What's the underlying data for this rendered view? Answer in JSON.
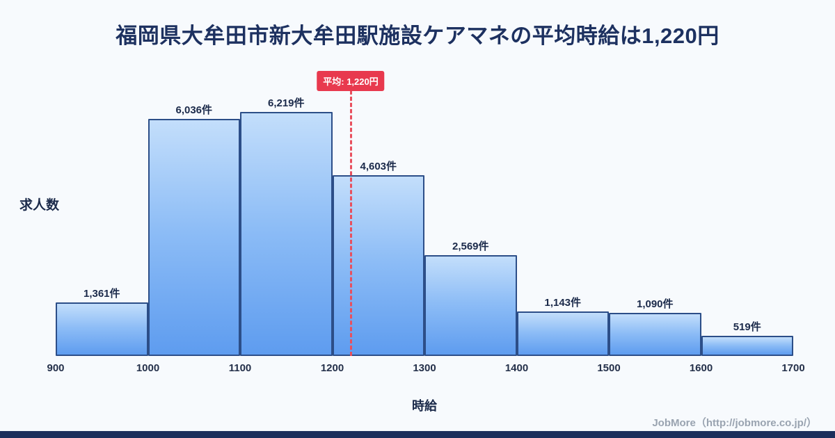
{
  "title": "福岡県大牟田市新大牟田駅施設ケアマネの平均時給は1,220円",
  "chart_data": {
    "type": "bar",
    "subtype": "histogram",
    "bin_edges": [
      900,
      1000,
      1100,
      1200,
      1300,
      1400,
      1500,
      1600,
      1700
    ],
    "categories": [
      "900-1000",
      "1000-1100",
      "1100-1200",
      "1200-1300",
      "1300-1400",
      "1400-1500",
      "1500-1600",
      "1600-1700"
    ],
    "values": [
      1361,
      6036,
      6219,
      4603,
      2569,
      1143,
      1090,
      519
    ],
    "value_labels": [
      "1,361件",
      "6,036件",
      "6,219件",
      "4,603件",
      "2,569件",
      "1,143件",
      "1,090件",
      "519件"
    ],
    "title": "福岡県大牟田市新大牟田駅施設ケアマネの平均時給は1,220円",
    "xlabel": "時給",
    "ylabel": "求人数",
    "xlim": [
      900,
      1700
    ],
    "ylim": [
      0,
      7300
    ],
    "grid": false,
    "legend": "none",
    "average_line": {
      "x": 1220,
      "label": "平均: 1,220円",
      "line_color": "#e8505e",
      "badge_color": "#e8394e"
    },
    "bar_fill_top": "#c3defb",
    "bar_fill_bottom": "#5e9cef",
    "bar_border": "#2c4e88"
  },
  "footer": {
    "credit": "JobMore（http://jobmore.co.jp/）"
  },
  "colors": {
    "background": "#f7fafd",
    "title_text": "#1d3160",
    "label_text": "#1b2a4a",
    "tick_text": "#24304a",
    "footer_text": "#99a3b0",
    "bottom_bar": "#1c2f5c"
  }
}
